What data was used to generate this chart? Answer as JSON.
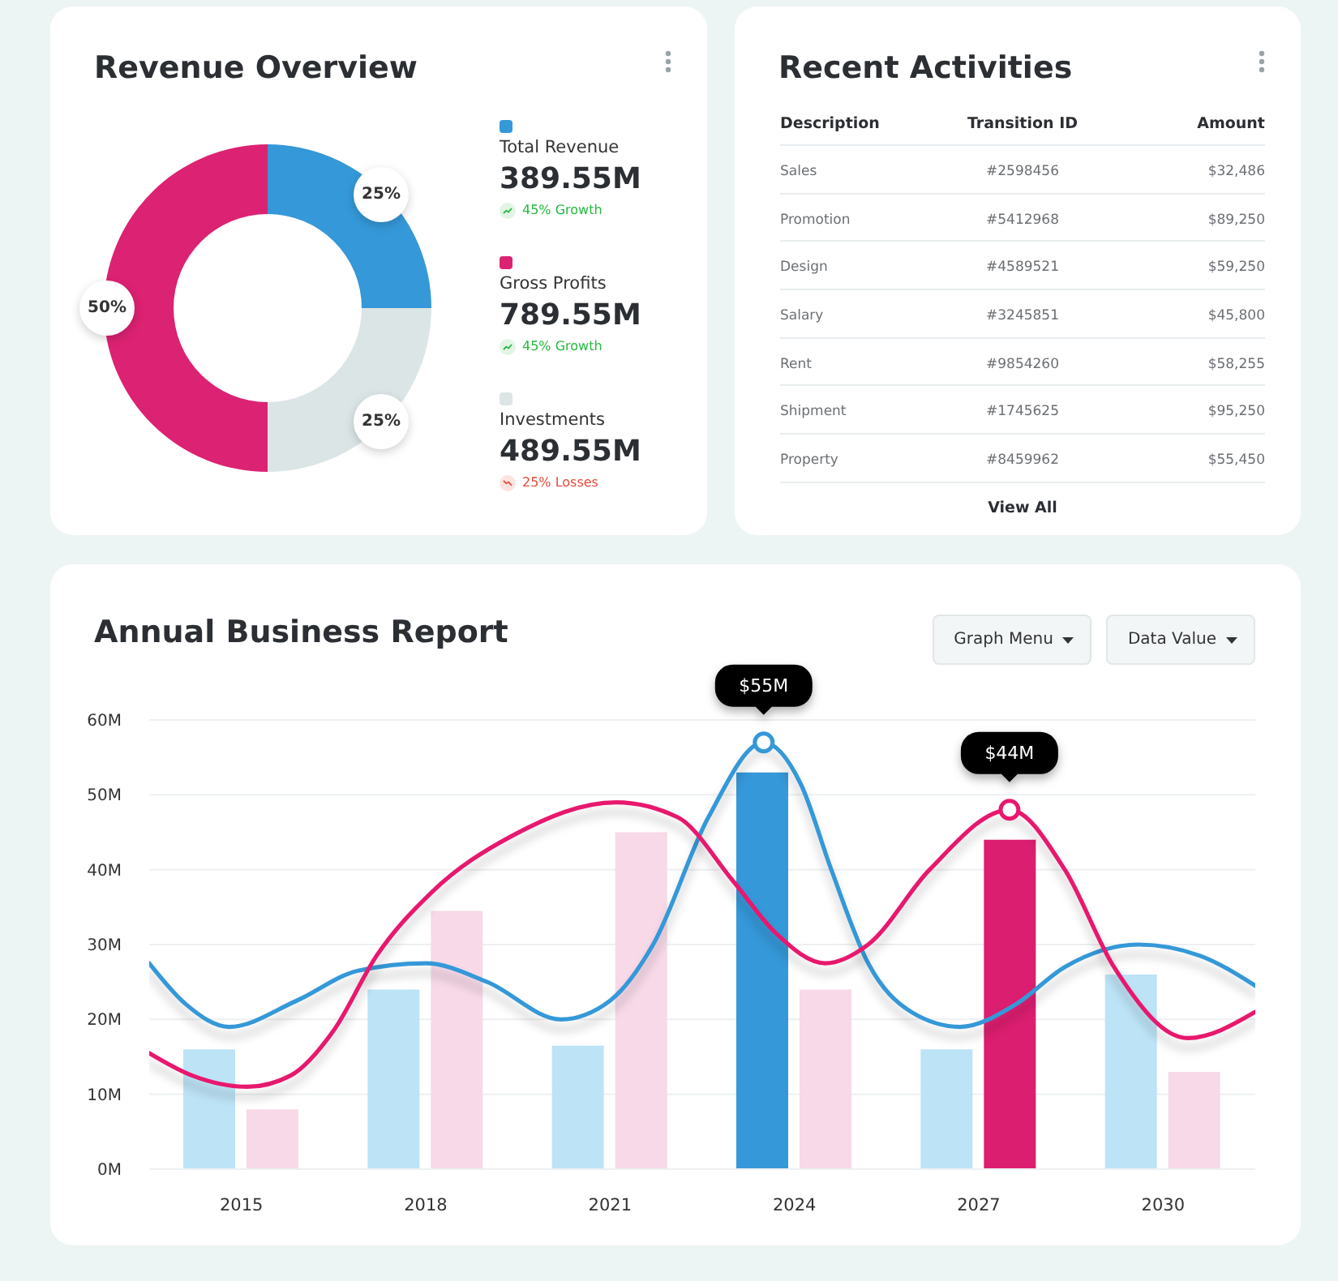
{
  "chart_data": [
    {
      "type": "donut",
      "title": "Revenue Overview",
      "categories": [
        "Total Revenue",
        "Gross Profits",
        "Investments"
      ],
      "values": [
        25,
        50,
        25
      ],
      "colors": [
        "#3598d8",
        "#dc2272",
        "#dce5e6"
      ],
      "value_labels": [
        "25%",
        "50%",
        "25%"
      ],
      "legend": "right",
      "annotations": [
        "389.55M",
        "45% Growth",
        "789.55M",
        "45% Growth",
        "489.55M",
        "25% Losses"
      ]
    },
    {
      "type": "other",
      "title": "Recent Activities",
      "categories": [
        "Description",
        "Transition ID",
        "Amount"
      ],
      "cell_labels": [
        [
          "Sales",
          "#2598456",
          "$32,486"
        ],
        [
          "Promotion",
          "#5412968",
          "$89,250"
        ],
        [
          "Design",
          "#4589521",
          "$59,250"
        ],
        [
          "Salary",
          "#3245851",
          "$45,800"
        ],
        [
          "Rent",
          "#9854260",
          "$58,255"
        ],
        [
          "Shipment",
          "#1745625",
          "$95,250"
        ],
        [
          "Property",
          "#8459962",
          "$55,450"
        ]
      ],
      "annotations": [
        "View All"
      ]
    },
    {
      "type": "bar",
      "title": "Annual Business Report",
      "x": [
        2015,
        2018,
        2021,
        2024,
        2027,
        2030
      ],
      "xlim": [
        2013.5,
        2031.5
      ],
      "xticks": [
        2015,
        2018,
        2021,
        2024,
        2027,
        2030
      ],
      "ylim": [
        0,
        60
      ],
      "yticks": [
        {
          "value": 0,
          "label": "0M"
        },
        {
          "value": 10,
          "label": "10M"
        },
        {
          "value": 20,
          "label": "20M"
        },
        {
          "value": 30,
          "label": "30M"
        },
        {
          "value": 40,
          "label": "40M"
        },
        {
          "value": 50,
          "label": "50M"
        },
        {
          "value": 60,
          "label": "60M"
        }
      ],
      "grid": "y",
      "series": [
        {
          "values": [
            16,
            24,
            16.5,
            53,
            16,
            26
          ],
          "colors": [
            "#bde3f6",
            "#bde3f6",
            "#bde3f6",
            "#3598d8",
            "#bde3f6",
            "#bde3f6"
          ]
        },
        {
          "values": [
            8,
            34.5,
            45,
            24,
            44,
            13
          ],
          "colors": [
            "#f7d9e8",
            "#f7d9e8",
            "#f7d9e8",
            "#f7d9e8",
            "#dc1e70",
            "#f7d9e8"
          ]
        },
        {
          "type": "line",
          "color": "#3598d8",
          "x": [
            2013.5,
            2014.1,
            2014.8,
            2015.9,
            2016.9,
            2018.0,
            2019.0,
            2020.2,
            2021.0,
            2021.7,
            2022.6,
            2023.5,
            2024.1,
            2024.6,
            2025.2,
            2025.9,
            2026.7,
            2027.6,
            2028.4,
            2029.6,
            2030.6,
            2031.5
          ],
          "values": [
            27.5,
            22,
            19,
            22.5,
            26.5,
            27.5,
            25,
            20,
            22.5,
            30,
            47,
            57,
            51.5,
            40,
            27.5,
            21,
            19,
            22,
            27,
            30,
            28.5,
            24.5
          ]
        },
        {
          "type": "line",
          "color": "#e8186e",
          "x": [
            2013.5,
            2014.2,
            2015.1,
            2015.8,
            2016.5,
            2017.2,
            2018.1,
            2019.4,
            2021.1,
            2022.1,
            2023.0,
            2023.7,
            2024.5,
            2025.2,
            2026.2,
            2027.5,
            2028.4,
            2029.2,
            2030.4,
            2031.5
          ],
          "values": [
            15.5,
            12.5,
            11,
            12.5,
            18.5,
            28.5,
            37,
            44.5,
            49,
            47,
            38.5,
            31.5,
            27.5,
            30,
            40,
            48,
            40,
            27,
            17.5,
            21
          ]
        }
      ],
      "annotations": [
        "Graph Menu",
        "Data Value",
        {
          "text": "$55M",
          "x": 2023.5,
          "y": 57
        },
        {
          "text": "$44M",
          "x": 2027.5,
          "y": 48
        }
      ]
    }
  ]
}
